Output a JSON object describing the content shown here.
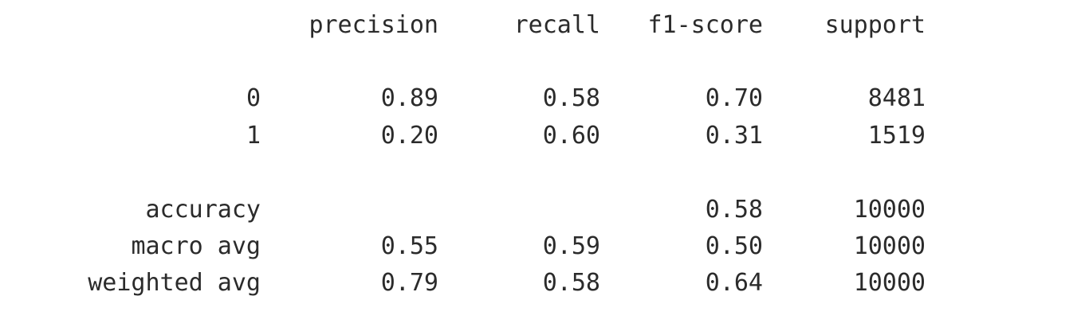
{
  "report": {
    "headers": {
      "precision": "precision",
      "recall": "recall",
      "f1_score": "f1-score",
      "support": "support"
    },
    "rows": [
      {
        "label": "0",
        "precision": "0.89",
        "recall": "0.58",
        "f1_score": "0.70",
        "support": "8481"
      },
      {
        "label": "1",
        "precision": "0.20",
        "recall": "0.60",
        "f1_score": "0.31",
        "support": "1519"
      }
    ],
    "accuracy": {
      "label": "accuracy",
      "f1_score": "0.58",
      "support": "10000"
    },
    "macro_avg": {
      "label": "macro avg",
      "precision": "0.55",
      "recall": "0.59",
      "f1_score": "0.50",
      "support": "10000"
    },
    "weighted_avg": {
      "label": "weighted avg",
      "precision": "0.79",
      "recall": "0.58",
      "f1_score": "0.64",
      "support": "10000"
    }
  }
}
